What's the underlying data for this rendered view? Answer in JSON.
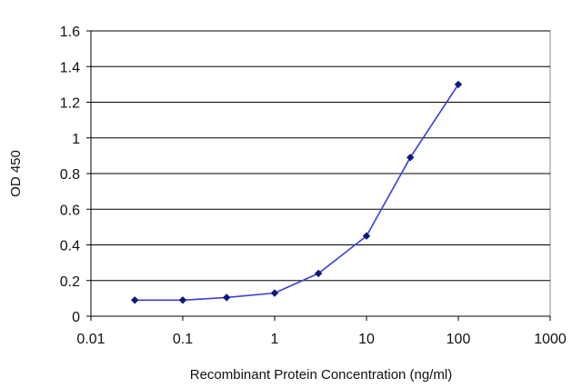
{
  "chart_data": {
    "type": "line",
    "title": "",
    "xlabel": "Recombinant Protein Concentration (ng/ml)",
    "ylabel": "OD 450",
    "x_scale": "log",
    "xlim": [
      0.01,
      1000
    ],
    "ylim": [
      0,
      1.6
    ],
    "x_ticks": [
      "0.01",
      "0.1",
      "1",
      "10",
      "100",
      "1000"
    ],
    "y_ticks": [
      "0",
      "0.2",
      "0.4",
      "0.6",
      "0.8",
      "1",
      "1.2",
      "1.4",
      "1.6"
    ],
    "grid": "horizontal",
    "legend": "none",
    "series": [
      {
        "x": [
          0.03,
          0.1,
          0.3,
          1,
          3,
          10,
          30,
          100
        ],
        "y": [
          0.09,
          0.09,
          0.105,
          0.13,
          0.24,
          0.45,
          0.89,
          1.3
        ]
      }
    ],
    "line_color": "#3a3fd4",
    "marker_color": "#0a1a7a",
    "grid_color": "#000000"
  }
}
